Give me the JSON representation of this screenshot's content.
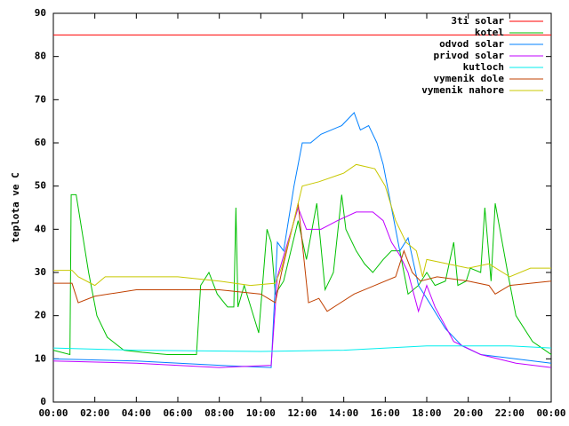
{
  "chart_data": {
    "type": "line",
    "ylabel": "teplota ve C",
    "xlim": [
      0,
      24
    ],
    "ylim": [
      0,
      90
    ],
    "yticks": [
      0,
      10,
      20,
      30,
      40,
      50,
      60,
      70,
      80,
      90
    ],
    "xticks": [
      {
        "value": 0,
        "label": "00:00"
      },
      {
        "value": 2,
        "label": "02:00"
      },
      {
        "value": 4,
        "label": "04:00"
      },
      {
        "value": 6,
        "label": "06:00"
      },
      {
        "value": 8,
        "label": "08:00"
      },
      {
        "value": 10,
        "label": "10:00"
      },
      {
        "value": 12,
        "label": "12:00"
      },
      {
        "value": 14,
        "label": "14:00"
      },
      {
        "value": 16,
        "label": "16:00"
      },
      {
        "value": 18,
        "label": "18:00"
      },
      {
        "value": 20,
        "label": "20:00"
      },
      {
        "value": 22,
        "label": "22:00"
      },
      {
        "value": 24,
        "label": "00:00"
      }
    ],
    "legend": "top-right",
    "series": [
      {
        "name": "3ti solar",
        "color": "#ff0000",
        "x": [
          0,
          24
        ],
        "values": [
          85,
          85
        ]
      },
      {
        "name": "kotel",
        "color": "#00c000",
        "x": [
          0,
          0.8,
          0.86,
          1.1,
          1.7,
          2.1,
          2.6,
          3.4,
          4.3,
          5.5,
          6.9,
          7.1,
          7.5,
          7.9,
          8.4,
          8.7,
          8.8,
          8.9,
          9.2,
          9.9,
          10.3,
          10.5,
          10.7,
          11.1,
          11.8,
          12.2,
          12.7,
          13.1,
          13.5,
          13.9,
          14.1,
          14.6,
          15.0,
          15.4,
          15.9,
          16.3,
          16.7,
          17.1,
          17.6,
          18.0,
          18.4,
          18.9,
          19.3,
          19.5,
          19.9,
          20.1,
          20.6,
          20.8,
          21.1,
          21.3,
          21.9,
          22.3,
          23.1,
          24
        ],
        "values": [
          12,
          11,
          48,
          48,
          30,
          20,
          15,
          12,
          11.5,
          11,
          11,
          27,
          30,
          25,
          22,
          22,
          45,
          22,
          27,
          16,
          40,
          37,
          25,
          28,
          42,
          33,
          46,
          26,
          30,
          48,
          40,
          35,
          32,
          30,
          33,
          35,
          35,
          25,
          27,
          30,
          27,
          28,
          37,
          27,
          28,
          31,
          30,
          45,
          28,
          46,
          30,
          20,
          14,
          11
        ]
      },
      {
        "name": "odvod solar",
        "color": "#0080ff",
        "x": [
          0,
          4,
          8,
          10.5,
          10.8,
          11.1,
          11.6,
          12,
          12.4,
          12.9,
          13.4,
          13.9,
          14.5,
          14.8,
          15.2,
          15.6,
          15.9,
          16.3,
          16.7,
          17.1,
          17.6,
          18,
          18.9,
          19.7,
          20.6,
          22.3,
          24
        ],
        "values": [
          10,
          9.5,
          8.5,
          8,
          37,
          35,
          50,
          60,
          60,
          62,
          63,
          64,
          67,
          63,
          64,
          60,
          55,
          45,
          35,
          38,
          27,
          24,
          17,
          13,
          11,
          10,
          9
        ]
      },
      {
        "name": "privod solar",
        "color": "#c000ff",
        "x": [
          0,
          4,
          8,
          10.5,
          10.8,
          11.8,
          12.2,
          12.9,
          13.7,
          14.6,
          15.4,
          15.9,
          16.3,
          16.7,
          17.1,
          17.6,
          18,
          18.4,
          19.3,
          20.6,
          22.3,
          24
        ],
        "values": [
          9.5,
          9,
          8,
          8.5,
          29,
          45,
          40,
          40,
          42,
          44,
          44,
          42,
          37,
          34,
          30,
          21,
          27,
          22,
          14,
          11,
          9,
          8
        ]
      },
      {
        "name": "kutloch",
        "color": "#00eeee",
        "x": [
          0,
          4,
          10,
          14,
          18,
          22,
          24
        ],
        "values": [
          12.5,
          12,
          11.7,
          12,
          13,
          13,
          12.5
        ]
      },
      {
        "name": "vymenik dole",
        "color": "#c04000",
        "x": [
          0,
          0.9,
          1.2,
          2,
          4,
          8,
          10,
          10.7,
          11,
          11.8,
          12.3,
          12.8,
          13.2,
          14.5,
          15.5,
          16.5,
          16.9,
          17.3,
          17.7,
          18.5,
          20,
          21,
          21.3,
          22,
          24
        ],
        "values": [
          27.5,
          27.5,
          23,
          24.5,
          26,
          26,
          25,
          23,
          30,
          46,
          23,
          24,
          21,
          25,
          27,
          29,
          35,
          30,
          28,
          29,
          28,
          27,
          25,
          27,
          28
        ]
      },
      {
        "name": "vymenik nahore",
        "color": "#c8c800",
        "x": [
          0,
          0.9,
          1.2,
          2,
          2.5,
          6,
          8,
          9.5,
          10.7,
          11,
          11.5,
          12,
          12.8,
          14,
          14.6,
          15.5,
          16,
          16.5,
          17,
          17.5,
          17.8,
          18,
          19,
          20,
          21,
          22,
          23,
          24
        ],
        "values": [
          30.5,
          30.5,
          29,
          27,
          29,
          29,
          28,
          27,
          27.5,
          31,
          40,
          50,
          51,
          53,
          55,
          54,
          50,
          42,
          37,
          35,
          29,
          33,
          32,
          31,
          32,
          29,
          31,
          31
        ]
      }
    ]
  }
}
